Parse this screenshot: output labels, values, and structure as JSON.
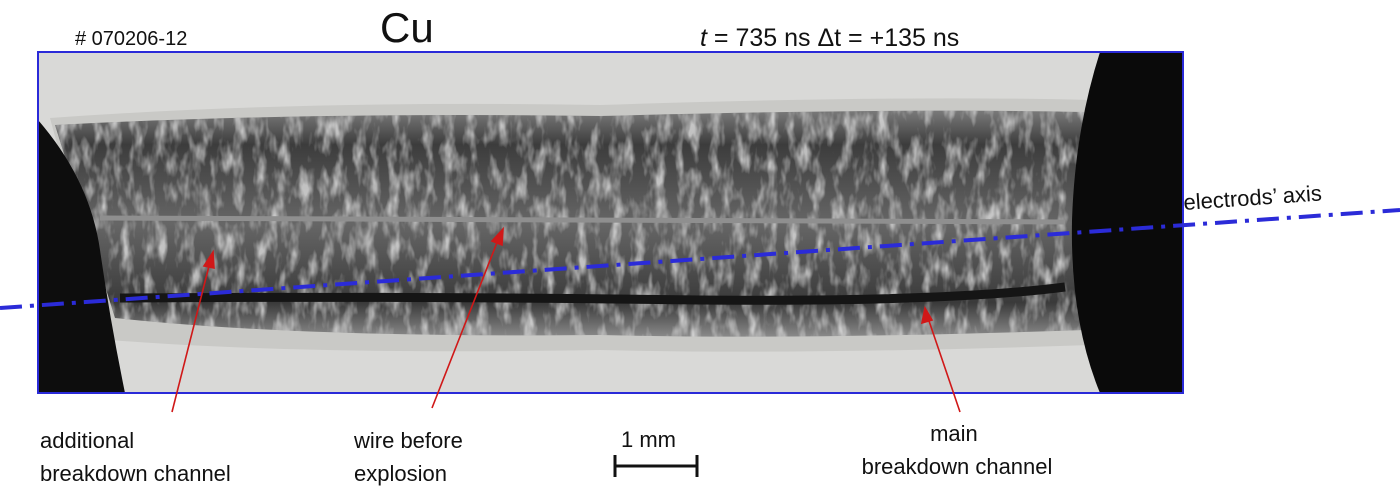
{
  "header": {
    "shot_id": "# 070206-12",
    "material": "Cu",
    "time_symbol": "t",
    "time_text": "= 735 ns  Δt = +135 ns"
  },
  "axis_label": "electrods’ axis",
  "scale_bar": "1 mm",
  "annotations": [
    {
      "lines": [
        "additional",
        "breakdown channel"
      ]
    },
    {
      "lines": [
        "wire before",
        "explosion"
      ]
    },
    {
      "lines": [
        "main",
        "breakdown channel"
      ]
    }
  ]
}
